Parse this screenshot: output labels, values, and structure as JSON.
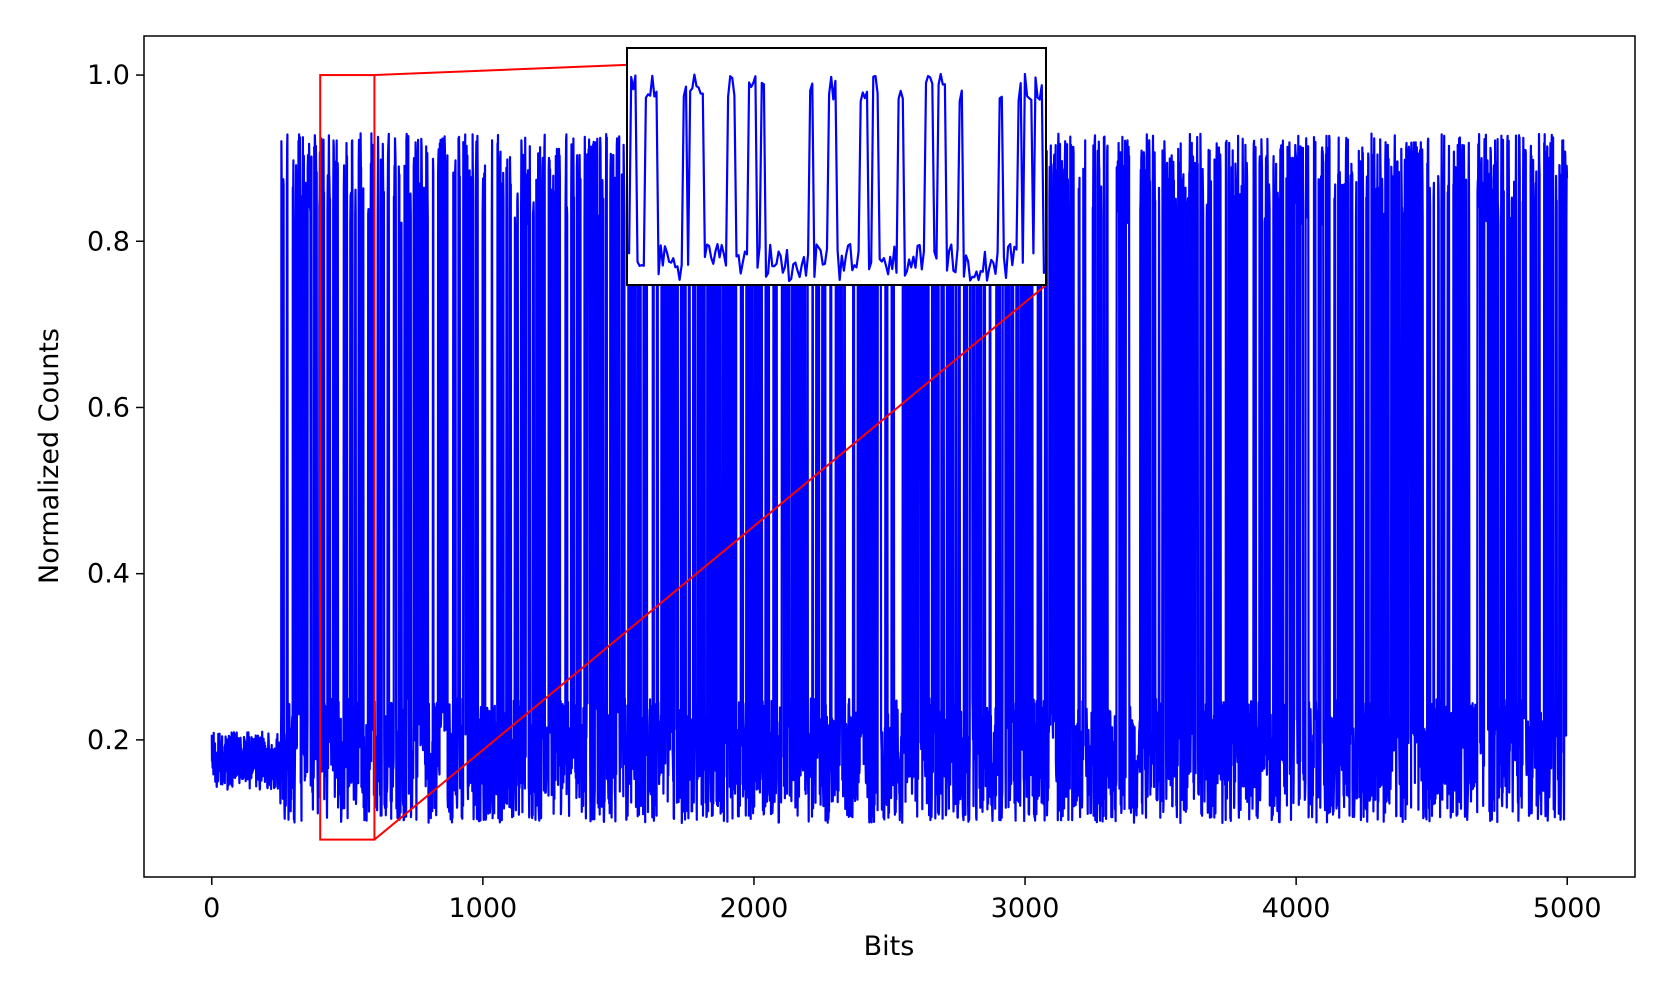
{
  "chart_data": {
    "type": "line",
    "title": "",
    "xlabel": "Bits",
    "ylabel": "Normalized Counts",
    "xlim": [
      -250,
      5250
    ],
    "ylim": [
      0.035,
      1.047
    ],
    "xticks": [
      0,
      1000,
      2000,
      3000,
      4000,
      5000
    ],
    "xtick_labels": [
      "0",
      "1000",
      "2000",
      "3000",
      "4000",
      "5000"
    ],
    "yticks": [
      0.2,
      0.4,
      0.6,
      0.8,
      1.0
    ],
    "ytick_labels": [
      "0.2",
      "0.4",
      "0.6",
      "0.8",
      "1.0"
    ],
    "grid": false,
    "series": [
      {
        "color": "#0000ff",
        "signal_start_bit": 250,
        "num_bits": 5000,
        "noise_floor": {
          "before_signal": [
            0.14,
            0.21
          ],
          "after_signal": [
            0.1,
            0.25
          ]
        },
        "peak_range": [
          0.82,
          0.93
        ]
      }
    ],
    "zoom": {
      "highlight_color": "#ff0000",
      "x_range": [
        400,
        600
      ],
      "y_range": [
        0.08,
        1.0
      ]
    }
  }
}
